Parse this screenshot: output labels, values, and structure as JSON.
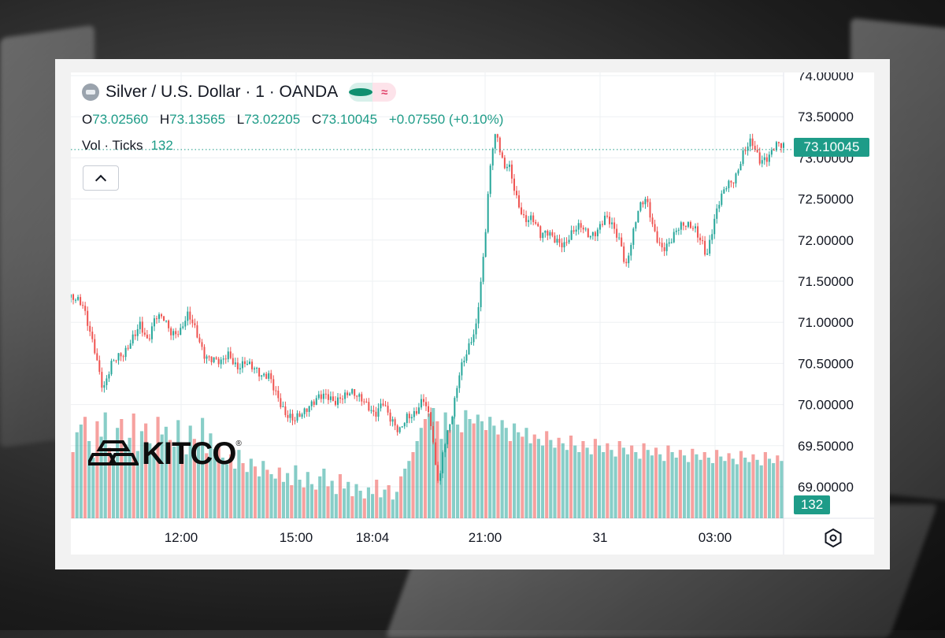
{
  "header": {
    "title": "Silver / U.S. Dollar · 1 · OANDA",
    "ohlc": {
      "o_label": "O",
      "o": "73.02560",
      "h_label": "H",
      "h": "73.13565",
      "l_label": "L",
      "l": "73.02205",
      "c_label": "C",
      "c": "73.10045",
      "change": "+0.07550 (+0.10%)"
    },
    "volume": {
      "label": "Vol · Ticks",
      "value": "132"
    },
    "status_colors": {
      "live": "#0f8f6f",
      "wave": "#e0436a"
    }
  },
  "watermark": {
    "brand": "KITCO"
  },
  "price_tag": "73.10045",
  "volume_tag": "132",
  "colors": {
    "up": "#26a69a",
    "down": "#ef5350",
    "accent": "#1e9c88",
    "grid": "#eef0f3"
  },
  "chart_data": {
    "type": "line",
    "title": "Silver / U.S. Dollar · 1 · OANDA",
    "y_ticks": [
      "74.00000",
      "73.50000",
      "73.00000",
      "72.50000",
      "72.00000",
      "71.50000",
      "71.00000",
      "70.50000",
      "70.00000",
      "69.50000",
      "69.00000"
    ],
    "x_ticks": [
      "12:00",
      "15:00",
      "18:04",
      "21:00",
      "31",
      "03:00"
    ],
    "ylim": [
      68.6,
      74.0
    ],
    "current_price": 73.10045,
    "series": [
      {
        "points": [
          [
            0,
            71.3
          ],
          [
            3,
            71.15
          ],
          [
            6,
            70.7
          ],
          [
            8,
            70.2
          ],
          [
            10,
            70.45
          ],
          [
            13,
            70.6
          ],
          [
            15,
            70.85
          ],
          [
            17,
            71.0
          ],
          [
            19,
            70.7
          ],
          [
            21,
            71.05
          ],
          [
            23,
            71.1
          ],
          [
            25,
            70.9
          ],
          [
            27,
            70.85
          ],
          [
            29,
            71.05
          ],
          [
            31,
            70.9
          ],
          [
            33,
            70.65
          ],
          [
            35,
            70.55
          ],
          [
            37,
            70.45
          ],
          [
            39,
            70.6
          ],
          [
            41,
            70.5
          ],
          [
            43,
            70.55
          ],
          [
            45,
            70.4
          ],
          [
            47,
            70.3
          ],
          [
            49,
            70.4
          ],
          [
            51,
            70.15
          ],
          [
            53,
            69.85
          ],
          [
            55,
            69.75
          ],
          [
            57,
            69.9
          ],
          [
            59,
            70.05
          ],
          [
            61,
            70.1
          ],
          [
            63,
            70.05
          ],
          [
            65,
            70.0
          ],
          [
            67,
            70.15
          ],
          [
            69,
            70.2
          ],
          [
            71,
            70.05
          ],
          [
            73,
            69.95
          ],
          [
            75,
            69.9
          ],
          [
            77,
            70.1
          ],
          [
            79,
            69.8
          ],
          [
            81,
            69.6
          ],
          [
            83,
            69.85
          ],
          [
            85,
            69.95
          ],
          [
            87,
            70.1
          ],
          [
            89,
            69.7
          ],
          [
            90,
            69.2
          ],
          [
            91,
            69.0
          ],
          [
            92,
            69.5
          ],
          [
            94,
            69.9
          ],
          [
            96,
            70.4
          ],
          [
            98,
            70.6
          ],
          [
            100,
            70.9
          ],
          [
            101,
            71.4
          ],
          [
            102,
            71.9
          ],
          [
            103,
            72.6
          ],
          [
            104,
            73.15
          ],
          [
            105,
            73.3
          ],
          [
            106,
            73.05
          ],
          [
            107,
            72.8
          ],
          [
            108,
            72.9
          ],
          [
            110,
            72.55
          ],
          [
            112,
            72.3
          ],
          [
            114,
            72.25
          ],
          [
            116,
            72.0
          ],
          [
            118,
            72.1
          ],
          [
            120,
            72.05
          ],
          [
            122,
            71.95
          ],
          [
            124,
            72.05
          ],
          [
            126,
            72.15
          ],
          [
            128,
            72.1
          ],
          [
            130,
            72.15
          ],
          [
            132,
            72.25
          ],
          [
            134,
            72.1
          ],
          [
            136,
            71.95
          ],
          [
            137,
            71.7
          ],
          [
            138,
            71.95
          ],
          [
            140,
            72.35
          ],
          [
            142,
            72.45
          ],
          [
            144,
            72.1
          ],
          [
            146,
            71.95
          ],
          [
            148,
            72.0
          ],
          [
            150,
            72.1
          ],
          [
            152,
            72.15
          ],
          [
            154,
            72.2
          ],
          [
            156,
            72.0
          ],
          [
            157,
            71.8
          ],
          [
            158,
            72.0
          ],
          [
            160,
            72.4
          ],
          [
            162,
            72.7
          ],
          [
            164,
            72.8
          ],
          [
            166,
            73.05
          ],
          [
            168,
            73.15
          ],
          [
            170,
            72.95
          ],
          [
            172,
            73.05
          ],
          [
            174,
            73.2
          ],
          [
            176,
            73.1
          ]
        ]
      }
    ],
    "volume_series": [
      60,
      78,
      85,
      92,
      70,
      55,
      88,
      74,
      96,
      64,
      58,
      82,
      90,
      67,
      73,
      95,
      61,
      79,
      86,
      68,
      57,
      92,
      76,
      83,
      71,
      65,
      89,
      62,
      58,
      84,
      72,
      66,
      91,
      59,
      77,
      63,
      68,
      55,
      49,
      58,
      45,
      62,
      50,
      42,
      54,
      47,
      38,
      52,
      44,
      40,
      36,
      46,
      33,
      41,
      30,
      48,
      35,
      28,
      42,
      31,
      26,
      38,
      45,
      29,
      34,
      22,
      40,
      27,
      33,
      20,
      31,
      25,
      18,
      28,
      22,
      35,
      19,
      26,
      30,
      17,
      24,
      38,
      45,
      52,
      60,
      70,
      82,
      90,
      95,
      100,
      88,
      72,
      96,
      80,
      92,
      85,
      78,
      98,
      90,
      86,
      94,
      88,
      80,
      92,
      84,
      76,
      89,
      82,
      70,
      86,
      78,
      74,
      82,
      68,
      76,
      72,
      66,
      79,
      71,
      64,
      73,
      68,
      62,
      75,
      66,
      60,
      70,
      64,
      58,
      72,
      66,
      60,
      68,
      62,
      56,
      70,
      64,
      58,
      66,
      60,
      54,
      68,
      62,
      57,
      64,
      58,
      52,
      66,
      60,
      55,
      62,
      57,
      51,
      63,
      58,
      53,
      60,
      55,
      50,
      62,
      56,
      52,
      59,
      54,
      49,
      61,
      55,
      51,
      58,
      53,
      48,
      60,
      54,
      50,
      57,
      52
    ]
  }
}
